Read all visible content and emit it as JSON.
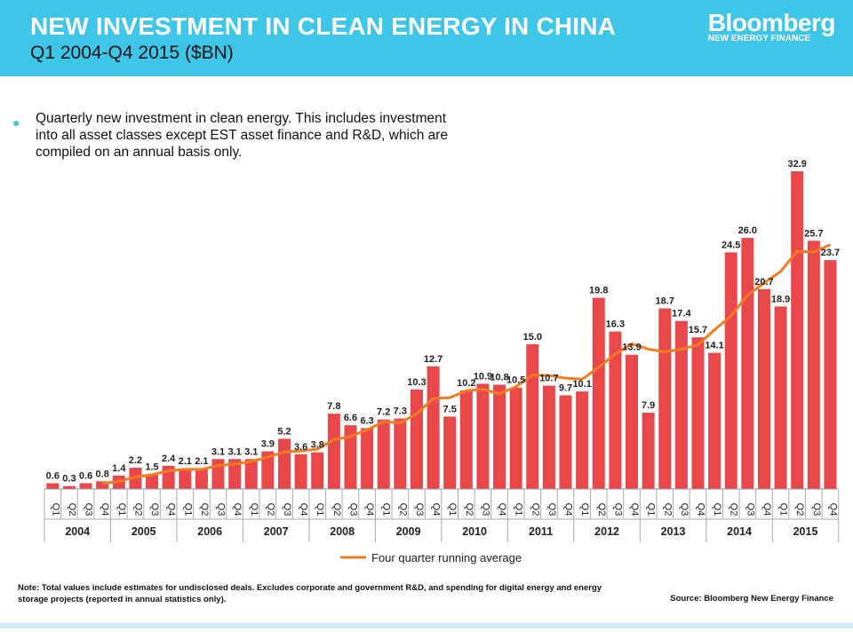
{
  "header": {
    "title": "NEW INVESTMENT IN CLEAN ENERGY IN CHINA",
    "subtitle": "Q1 2004-Q4 2015 ($BN)",
    "logo_main": "Bloomberg",
    "logo_sub": "NEW ENERGY FINANCE"
  },
  "description": "Quarterly new investment in clean energy. This includes investment into all asset classes except EST asset finance and R&D, which are compiled on an annual basis only.",
  "note": "Note: Total values include estimates for undisclosed deals. Excludes corporate and government R&D, and spending for digital energy and energy storage projects (reported in annual statistics only).",
  "source": "Source: Bloomberg New Energy Finance",
  "colors": {
    "header": "#3ec6e8",
    "bar": "#e8484a",
    "line": "#f47b20"
  },
  "chart_data": {
    "type": "bar",
    "years": [
      "2004",
      "2005",
      "2006",
      "2007",
      "2008",
      "2009",
      "2010",
      "2011",
      "2012",
      "2013",
      "2014",
      "2015"
    ],
    "quarters": [
      "Q1",
      "Q2",
      "Q3",
      "Q4"
    ],
    "ylim": [
      0,
      35
    ],
    "grid": false,
    "legend_placement": "bottom",
    "values": [
      0.6,
      0.3,
      0.6,
      0.8,
      1.4,
      2.2,
      1.5,
      2.4,
      2.1,
      2.1,
      3.1,
      3.1,
      3.1,
      3.9,
      5.2,
      3.6,
      3.8,
      7.8,
      6.6,
      6.3,
      7.2,
      7.3,
      10.3,
      12.7,
      7.5,
      10.2,
      10.9,
      10.8,
      10.5,
      15.0,
      10.7,
      9.7,
      10.1,
      19.8,
      16.3,
      13.9,
      7.9,
      18.7,
      17.4,
      15.7,
      14.1,
      24.5,
      26.0,
      20.7,
      18.9,
      32.9,
      25.7,
      23.7
    ],
    "line_series": {
      "name": "Four quarter running average",
      "type": "line",
      "values": [
        null,
        null,
        null,
        0.58,
        0.78,
        1.25,
        1.48,
        1.88,
        2.05,
        2.03,
        2.43,
        2.6,
        2.85,
        3.3,
        3.83,
        3.95,
        4.13,
        5.1,
        5.45,
        6.13,
        6.98,
        6.85,
        7.78,
        9.38,
        9.45,
        10.18,
        10.33,
        9.85,
        10.6,
        11.8,
        11.75,
        11.48,
        11.38,
        12.58,
        13.98,
        15.03,
        14.48,
        14.2,
        14.48,
        14.93,
        16.48,
        17.93,
        20.08,
        21.33,
        22.53,
        24.63,
        24.55,
        25.3
      ]
    }
  }
}
